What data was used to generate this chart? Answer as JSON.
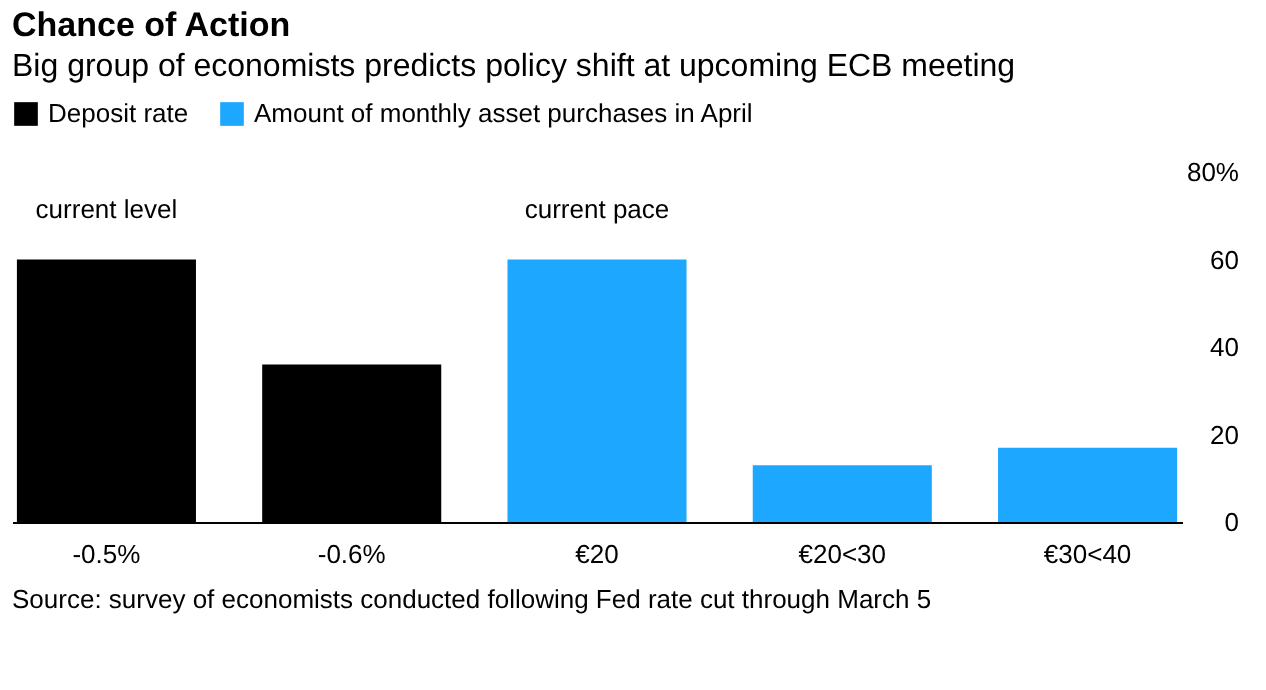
{
  "chart_data": {
    "type": "bar",
    "title": "Chance of Action",
    "subtitle": "Big group of economists predicts policy shift at upcoming ECB meeting",
    "categories": [
      "-0.5%",
      "-0.6%",
      "€20",
      "€20<30",
      "€30<40"
    ],
    "series": [
      {
        "name": "Deposit rate",
        "color": "#000000",
        "values": [
          60,
          36,
          null,
          null,
          null
        ]
      },
      {
        "name": "Amount of monthly asset purchases in April",
        "color": "#1ea7ff",
        "values": [
          null,
          null,
          60,
          13,
          17
        ]
      }
    ],
    "ylim": [
      0,
      80
    ],
    "yticks": [
      0,
      20,
      40,
      60,
      {
        "value": 80,
        "label": "80%"
      }
    ],
    "grid": false,
    "legend": "top left",
    "annotations": [
      "current level",
      "current pace",
      "Source: survey of economists conducted following Fed rate cut through March 5"
    ]
  }
}
